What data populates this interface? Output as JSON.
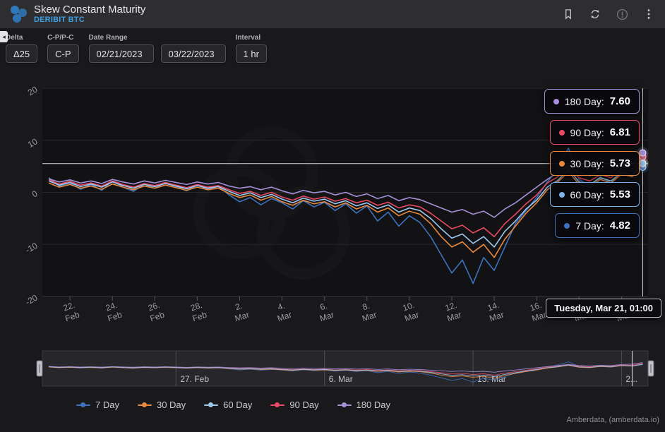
{
  "header": {
    "title": "Skew Constant Maturity",
    "subtitle": "DERIBIT BTC"
  },
  "collapse_handle": "◂",
  "controls": {
    "delta": {
      "label": "Delta",
      "value": "Δ25"
    },
    "call_put": {
      "label": "C-P/P-C",
      "value": "C-P"
    },
    "date_range": {
      "label": "Date Range",
      "start": "02/21/2023",
      "end": "03/22/2023"
    },
    "interval": {
      "label": "Interval",
      "value": "1 hr"
    }
  },
  "tooltip": {
    "date": "Tuesday, Mar 21, 01:00",
    "items": [
      {
        "name": "180 Day",
        "value": "7.60",
        "color": "#a58fd8"
      },
      {
        "name": "90 Day",
        "value": "6.81",
        "color": "#e84a64"
      },
      {
        "name": "30 Day",
        "value": "5.73",
        "color": "#e8893f"
      },
      {
        "name": "60 Day",
        "value": "5.53",
        "color": "#7fb2e8"
      },
      {
        "name": "7 Day",
        "value": "4.82",
        "color": "#3d72be"
      }
    ]
  },
  "legend": {
    "items": [
      {
        "label": "7 Day",
        "color": "#3d72be"
      },
      {
        "label": "30 Day",
        "color": "#e8893f"
      },
      {
        "label": "60 Day",
        "color": "#9ec9ef"
      },
      {
        "label": "90 Day",
        "color": "#e84a64"
      },
      {
        "label": "180 Day",
        "color": "#a58fd8"
      }
    ]
  },
  "footer": {
    "credit": "Amberdata, (amberdata.io)"
  },
  "chart_data": {
    "type": "line",
    "title": "Skew Constant Maturity",
    "xlabel": "",
    "ylabel": "",
    "ylim": [
      -20,
      20
    ],
    "yticks": [
      20,
      10,
      0,
      -10,
      -20
    ],
    "x": [
      0,
      0.5,
      1,
      1.5,
      2,
      2.5,
      3,
      3.5,
      4,
      4.5,
      5,
      5.5,
      6,
      6.5,
      7,
      7.5,
      8,
      8.5,
      9,
      9.5,
      10,
      10.5,
      11,
      11.5,
      12,
      12.5,
      13,
      13.5,
      14,
      14.5,
      15,
      15.5,
      16,
      16.5,
      17,
      17.5,
      18,
      18.5,
      19,
      19.5,
      20,
      20.5,
      21,
      21.5,
      22,
      22.5,
      23,
      23.5,
      24,
      24.5,
      25,
      25.5,
      26,
      26.5,
      27,
      27.5,
      28
    ],
    "series": [
      {
        "name": "7 Day",
        "color": "#3d72be",
        "values": [
          2.8,
          1.2,
          1.8,
          0.6,
          1.5,
          0.4,
          2.2,
          1.0,
          0.2,
          1.6,
          0.8,
          1.9,
          1.1,
          0.3,
          1.4,
          0.6,
          1.2,
          -0.5,
          -1.8,
          -1.0,
          -2.4,
          -1.2,
          -2.0,
          -3.2,
          -1.6,
          -2.8,
          -1.9,
          -3.5,
          -2.2,
          -4.0,
          -2.6,
          -5.5,
          -3.8,
          -6.5,
          -4.5,
          -5.8,
          -8.5,
          -12.0,
          -15.5,
          -13.0,
          -17.5,
          -12.5,
          -15.0,
          -10.5,
          -6.0,
          -3.5,
          -1.0,
          2.0,
          4.5,
          8.5,
          2.5,
          1.2,
          3.0,
          1.8,
          4.2,
          3.0,
          4.82
        ]
      },
      {
        "name": "30 Day",
        "color": "#e8893f",
        "values": [
          1.8,
          1.0,
          1.5,
          0.8,
          1.2,
          0.6,
          1.6,
          1.0,
          0.5,
          1.2,
          0.8,
          1.4,
          0.9,
          0.4,
          1.0,
          0.5,
          0.8,
          -0.2,
          -1.0,
          -0.5,
          -1.5,
          -0.8,
          -1.8,
          -2.5,
          -1.5,
          -2.2,
          -1.8,
          -2.8,
          -2.0,
          -3.2,
          -2.5,
          -3.8,
          -3.0,
          -4.5,
          -3.6,
          -4.2,
          -6.0,
          -8.5,
          -10.5,
          -9.5,
          -11.5,
          -10.0,
          -12.5,
          -9.0,
          -6.5,
          -4.0,
          -2.0,
          0.5,
          2.0,
          4.0,
          1.5,
          1.0,
          2.5,
          1.8,
          3.5,
          3.0,
          5.73
        ]
      },
      {
        "name": "90 Day",
        "color": "#e84a64",
        "values": [
          2.4,
          1.6,
          2.1,
          1.4,
          1.8,
          1.2,
          2.2,
          1.5,
          1.0,
          1.7,
          1.3,
          1.9,
          1.4,
          0.9,
          1.5,
          1.0,
          1.3,
          0.5,
          -0.2,
          0.2,
          -0.6,
          0.0,
          -0.9,
          -1.5,
          -0.7,
          -1.3,
          -0.9,
          -1.7,
          -1.2,
          -2.0,
          -1.5,
          -2.5,
          -1.9,
          -3.0,
          -2.4,
          -2.8,
          -4.0,
          -5.5,
          -7.0,
          -6.3,
          -7.8,
          -6.8,
          -8.5,
          -6.0,
          -4.2,
          -2.2,
          -0.5,
          1.8,
          3.0,
          5.0,
          2.8,
          2.2,
          3.4,
          2.8,
          4.5,
          4.0,
          6.81
        ]
      },
      {
        "name": "60 Day",
        "color": "#9ec9ef",
        "values": [
          2.2,
          1.4,
          1.9,
          1.1,
          1.6,
          1.0,
          2.0,
          1.3,
          0.8,
          1.5,
          1.1,
          1.7,
          1.2,
          0.7,
          1.3,
          0.8,
          1.1,
          0.2,
          -0.6,
          -0.1,
          -1.0,
          -0.4,
          -1.3,
          -2.0,
          -1.1,
          -1.7,
          -1.3,
          -2.2,
          -1.6,
          -2.6,
          -2.0,
          -3.1,
          -2.4,
          -3.8,
          -3.0,
          -3.5,
          -5.0,
          -7.0,
          -8.8,
          -8.0,
          -9.8,
          -8.5,
          -10.5,
          -7.5,
          -5.5,
          -3.2,
          -1.5,
          1.0,
          2.3,
          4.5,
          2.0,
          1.5,
          2.8,
          2.2,
          3.8,
          3.4,
          5.53
        ]
      },
      {
        "name": "180 Day",
        "color": "#a58fd8",
        "values": [
          2.6,
          2.0,
          2.4,
          1.8,
          2.2,
          1.7,
          2.5,
          2.0,
          1.6,
          2.2,
          1.8,
          2.3,
          1.9,
          1.5,
          2.0,
          1.6,
          1.9,
          1.2,
          0.8,
          1.1,
          0.5,
          1.0,
          0.3,
          -0.3,
          0.4,
          -0.1,
          0.2,
          -0.5,
          0.0,
          -0.8,
          -0.3,
          -1.2,
          -0.6,
          -1.6,
          -1.0,
          -1.4,
          -2.2,
          -3.0,
          -3.8,
          -3.3,
          -4.2,
          -3.6,
          -4.8,
          -3.2,
          -2.0,
          -0.5,
          1.0,
          2.5,
          3.8,
          5.2,
          3.8,
          3.2,
          4.2,
          3.8,
          5.2,
          5.5,
          7.6
        ]
      }
    ],
    "xticks": [
      {
        "pos": 1,
        "line1": "22.",
        "line2": "Feb"
      },
      {
        "pos": 3,
        "line1": "24.",
        "line2": "Feb"
      },
      {
        "pos": 5,
        "line1": "26.",
        "line2": "Feb"
      },
      {
        "pos": 7,
        "line1": "28.",
        "line2": "Feb"
      },
      {
        "pos": 9,
        "line1": "2.",
        "line2": "Mar"
      },
      {
        "pos": 11,
        "line1": "4.",
        "line2": "Mar"
      },
      {
        "pos": 13,
        "line1": "6.",
        "line2": "Mar"
      },
      {
        "pos": 15,
        "line1": "8.",
        "line2": "Mar"
      },
      {
        "pos": 17,
        "line1": "10.",
        "line2": "Mar"
      },
      {
        "pos": 19,
        "line1": "12.",
        "line2": "Mar"
      },
      {
        "pos": 21,
        "line1": "14.",
        "line2": "Mar"
      },
      {
        "pos": 23,
        "line1": "16.",
        "line2": "Mar"
      },
      {
        "pos": 25,
        "line1": "18.",
        "line2": "Mar"
      },
      {
        "pos": 27,
        "line1": "20.",
        "line2": "Mar"
      }
    ],
    "crosshair": {
      "x": 28,
      "y": 5.53,
      "date_label": "Tuesday, Mar 21, 01:00"
    },
    "navigator": {
      "ticks": [
        {
          "pos": 6,
          "label": "27. Feb"
        },
        {
          "pos": 13,
          "label": "6. Mar"
        },
        {
          "pos": 20,
          "label": "13. Mar"
        },
        {
          "pos": 27,
          "label": "2..."
        }
      ],
      "current_pos": 27.5
    },
    "legend_position": "bottom",
    "grid": "horizontal"
  }
}
